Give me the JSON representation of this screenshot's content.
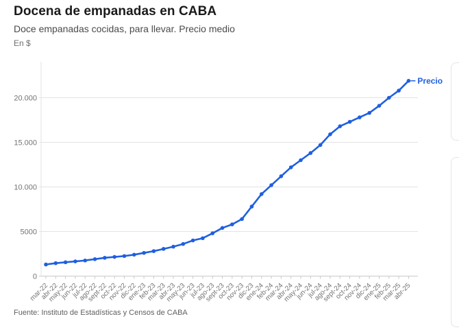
{
  "header": {
    "title": "Docena de empanadas en CABA",
    "subtitle": "Doce empanadas cocidas, para llevar. Precio medio",
    "unit": "En $"
  },
  "footer": {
    "source": "Fuente: Instituto de Estadísticas y Censos de CABA"
  },
  "colors": {
    "line": "#1f5fe0",
    "grid": "#e3e3e3",
    "zero_line": "#c9c9c9",
    "axis_text": "#737373"
  },
  "chart_data": {
    "type": "line",
    "title": "Docena de empanadas en CABA",
    "subtitle": "Doce empanadas cocidas, para llevar. Precio medio",
    "ylabel": "En $",
    "xlabel": "",
    "grid": true,
    "ylim": [
      0,
      23500
    ],
    "end_label": "Precio",
    "y_ticks": [
      {
        "value": 0,
        "label": "0"
      },
      {
        "value": 5000,
        "label": "5000"
      },
      {
        "value": 10000,
        "label": "10.000"
      },
      {
        "value": 15000,
        "label": "15.000"
      },
      {
        "value": 20000,
        "label": "20.000"
      }
    ],
    "categories": [
      "mar-22",
      "abr-22",
      "may-22",
      "jun-22",
      "jul-22",
      "ago-22",
      "sept-22",
      "oct-22",
      "nov-22",
      "dic-22",
      "ene-23",
      "feb-23",
      "mar-23",
      "abr-23",
      "may-23",
      "jun-23",
      "jul-23",
      "ago-23",
      "sept-23",
      "oct-23",
      "nov-23",
      "dic-23",
      "ene-24",
      "feb-24",
      "mar-24",
      "abr-24",
      "may-24",
      "jun-24",
      "jul-24",
      "ago-24",
      "sept-24",
      "oct-24",
      "nov-24",
      "dic-24",
      "ene-25",
      "feb-25",
      "mar-25",
      "abr-25"
    ],
    "series": [
      {
        "name": "Precio",
        "color": "#1f5fe0",
        "values": [
          1300,
          1450,
          1550,
          1650,
          1750,
          1900,
          2050,
          2150,
          2250,
          2400,
          2600,
          2800,
          3050,
          3300,
          3600,
          4000,
          4250,
          4800,
          5400,
          5800,
          6400,
          7800,
          9200,
          10200,
          11200,
          12200,
          13000,
          13800,
          14700,
          15900,
          16800,
          17300,
          17800,
          18300,
          19100,
          20000,
          20800,
          21900
        ]
      }
    ],
    "source": "Fuente: Instituto de Estadísticas y Censos de CABA"
  }
}
